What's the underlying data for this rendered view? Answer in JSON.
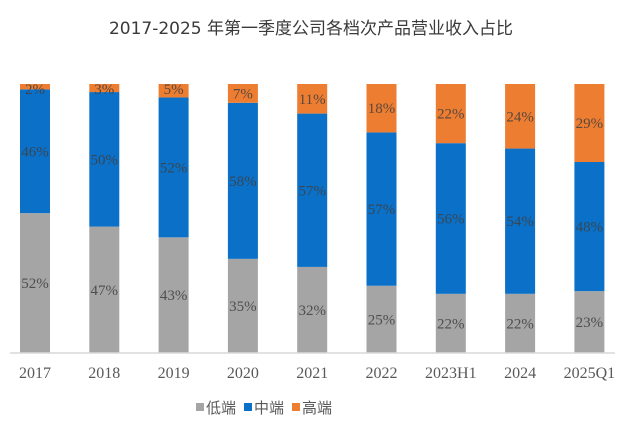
{
  "chart_data": {
    "type": "bar",
    "stacked": true,
    "percent": true,
    "title": "2017-2025 年第一季度公司各档次产品营业收入占比",
    "xlabel": "",
    "ylabel": "",
    "ylim": [
      0,
      100
    ],
    "grid": false,
    "legend_position": "bottom",
    "categories": [
      "2017",
      "2018",
      "2019",
      "2020",
      "2021",
      "2022",
      "2023H1",
      "2024",
      "2025Q1"
    ],
    "series": [
      {
        "name": "低端",
        "color": "#a5a5a5",
        "values": [
          52,
          47,
          43,
          35,
          32,
          25,
          22,
          22,
          23
        ],
        "labels": [
          "52%",
          "47%",
          "43%",
          "35%",
          "32%",
          "25%",
          "22%",
          "22%",
          "23%"
        ]
      },
      {
        "name": "中端",
        "color": "#0a70c8",
        "values": [
          46,
          50,
          52,
          58,
          57,
          57,
          56,
          54,
          48
        ],
        "labels": [
          "46%",
          "50%",
          "52%",
          "58%",
          "57%",
          "57%",
          "56%",
          "54%",
          "48%"
        ]
      },
      {
        "name": "高端",
        "color": "#ed7d31",
        "values": [
          2,
          3,
          5,
          7,
          11,
          18,
          22,
          24,
          29
        ],
        "labels": [
          "2%",
          "3%",
          "5%",
          "7%",
          "11%",
          "18%",
          "22%",
          "24%",
          "29%"
        ]
      }
    ]
  }
}
